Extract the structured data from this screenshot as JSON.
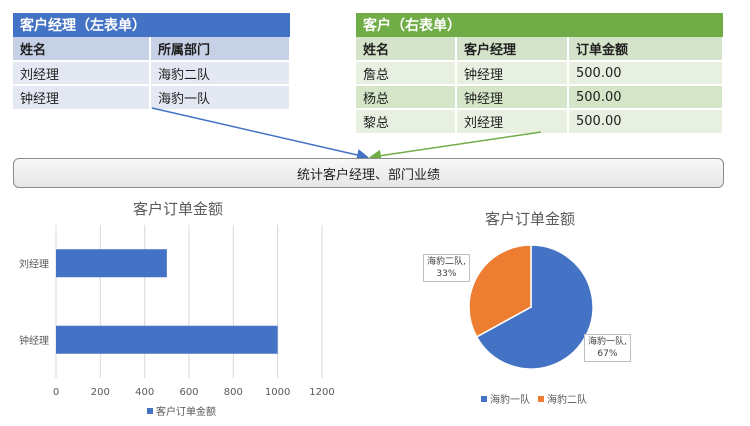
{
  "left_table": {
    "title": "客户经理（左表单）",
    "headers": [
      "姓名",
      "所属部门"
    ],
    "rows": [
      [
        "刘经理",
        "海豹二队"
      ],
      [
        "钟经理",
        "海豹一队"
      ]
    ]
  },
  "right_table": {
    "title": "客户（右表单）",
    "headers": [
      "姓名",
      "客户经理",
      "订单金额"
    ],
    "rows": [
      [
        "詹总",
        "钟经理",
        "500.00"
      ],
      [
        "杨总",
        "钟经理",
        "500.00"
      ],
      [
        "黎总",
        "刘经理",
        "500.00"
      ]
    ]
  },
  "action_button": {
    "label": "统计客户经理、部门业绩"
  },
  "colors": {
    "blue": "#4472c4",
    "green": "#70ad47",
    "orange": "#ed7d31"
  },
  "chart_data": [
    {
      "type": "bar",
      "title": "客户订单金额",
      "categories": [
        "刘经理",
        "钟经理"
      ],
      "series": [
        {
          "name": "客户订单金额",
          "values": [
            500,
            1000
          ]
        }
      ],
      "xlim": [
        0,
        1200
      ],
      "xticks": [
        "0",
        "200",
        "400",
        "600",
        "800",
        "1000",
        "1200"
      ],
      "grid": true,
      "legend": "bottom"
    },
    {
      "type": "pie",
      "title": "客户订单金额",
      "categories": [
        "海豹一队",
        "海豹二队"
      ],
      "values": [
        67,
        33
      ],
      "labels": [
        {
          "name": "海豹一队,",
          "pct": "67%"
        },
        {
          "name": "海豹二队,",
          "pct": "33%"
        }
      ],
      "legend": "bottom"
    }
  ]
}
